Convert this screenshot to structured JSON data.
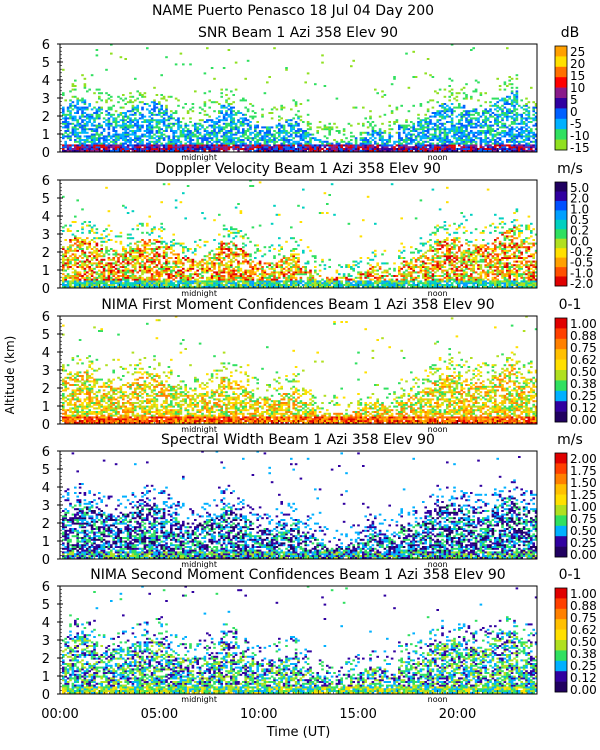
{
  "figure": {
    "title": "NAME Puerto Penasco   18 Jul 04 Day 200",
    "ylabel": "Altitude (km)",
    "xlabel": "Time (UT)",
    "x_ticks": [
      "00:00",
      "05:00",
      "10:00",
      "15:00",
      "20:00"
    ],
    "marker_midnight": "midnight",
    "marker_noon": "noon"
  },
  "chart_data": [
    {
      "type": "heatmap",
      "title": "SNR Beam 1 Azi 358 Elev 90",
      "units": "dB",
      "xlim": [
        0,
        24
      ],
      "ylim": [
        0,
        6
      ],
      "y_ticks": [
        "0",
        "1",
        "2",
        "3",
        "4",
        "5",
        "6"
      ],
      "colorbar_labels": [
        "25",
        "20",
        "15",
        "10",
        "5",
        "0",
        "-5",
        "-10",
        "-15"
      ],
      "colorbar_colors": [
        "#ffa000",
        "#ffe000",
        "#ff7000",
        "#ff0000",
        "#8a1a8a",
        "#3000a0",
        "#0060ff",
        "#00b0ff",
        "#30e060",
        "#90e020"
      ],
      "pattern": "snr"
    },
    {
      "type": "heatmap",
      "title": "Doppler Velocity Beam 1 Azi 358 Elev 90",
      "units": "m/s",
      "xlim": [
        0,
        24
      ],
      "ylim": [
        0,
        6
      ],
      "y_ticks": [
        "0",
        "1",
        "2",
        "3",
        "4",
        "5",
        "6"
      ],
      "colorbar_labels": [
        "5.0",
        "2.0",
        "1.0",
        "0.5",
        "0.2",
        "0.0",
        "-0.2",
        "-0.5",
        "-1.0",
        "-2.0"
      ],
      "colorbar_colors": [
        "#200060",
        "#3000a0",
        "#0050ff",
        "#00a0ff",
        "#00d0c0",
        "#30e060",
        "#b0e020",
        "#ffe000",
        "#ffa000",
        "#ff5000",
        "#e00000"
      ],
      "pattern": "doppler"
    },
    {
      "type": "heatmap",
      "title": "NIMA First Moment Confidences Beam 1 Azi 358 Elev 90",
      "units": "0-1",
      "xlim": [
        0,
        24
      ],
      "ylim": [
        0,
        6
      ],
      "y_ticks": [
        "0",
        "1",
        "2",
        "3",
        "4",
        "5",
        "6"
      ],
      "colorbar_labels": [
        "1.00",
        "0.88",
        "0.75",
        "0.62",
        "0.50",
        "0.38",
        "0.25",
        "0.12",
        "0.00"
      ],
      "colorbar_colors": [
        "#e00000",
        "#ff4000",
        "#ff8000",
        "#ffc000",
        "#ffe000",
        "#b0e020",
        "#30e060",
        "#00b0ff",
        "#3000a0",
        "#200060"
      ],
      "pattern": "conf1"
    },
    {
      "type": "heatmap",
      "title": "Spectral Width Beam 1 Azi 358 Elev 90",
      "units": "m/s",
      "xlim": [
        0,
        24
      ],
      "ylim": [
        0,
        6
      ],
      "y_ticks": [
        "0",
        "1",
        "2",
        "3",
        "4",
        "5",
        "6"
      ],
      "colorbar_labels": [
        "2.00",
        "1.75",
        "1.50",
        "1.25",
        "1.00",
        "0.75",
        "0.50",
        "0.25",
        "0.00"
      ],
      "colorbar_colors": [
        "#e00000",
        "#ff4000",
        "#ff8000",
        "#ffc000",
        "#ffe000",
        "#b0e020",
        "#30e060",
        "#00b0ff",
        "#3000a0",
        "#200060"
      ],
      "pattern": "width"
    },
    {
      "type": "heatmap",
      "title": "NIMA Second Moment Confidences Beam 1 Azi 358 Elev 90",
      "units": "0-1",
      "xlim": [
        0,
        24
      ],
      "ylim": [
        0,
        6
      ],
      "y_ticks": [
        "0",
        "1",
        "2",
        "3",
        "4",
        "5",
        "6"
      ],
      "colorbar_labels": [
        "1.00",
        "0.88",
        "0.75",
        "0.62",
        "0.50",
        "0.38",
        "0.25",
        "0.12",
        "0.00"
      ],
      "colorbar_colors": [
        "#e00000",
        "#ff4000",
        "#ff8000",
        "#ffc000",
        "#ffe000",
        "#b0e020",
        "#30e060",
        "#00b0ff",
        "#3000a0",
        "#200060"
      ],
      "pattern": "conf2"
    }
  ]
}
